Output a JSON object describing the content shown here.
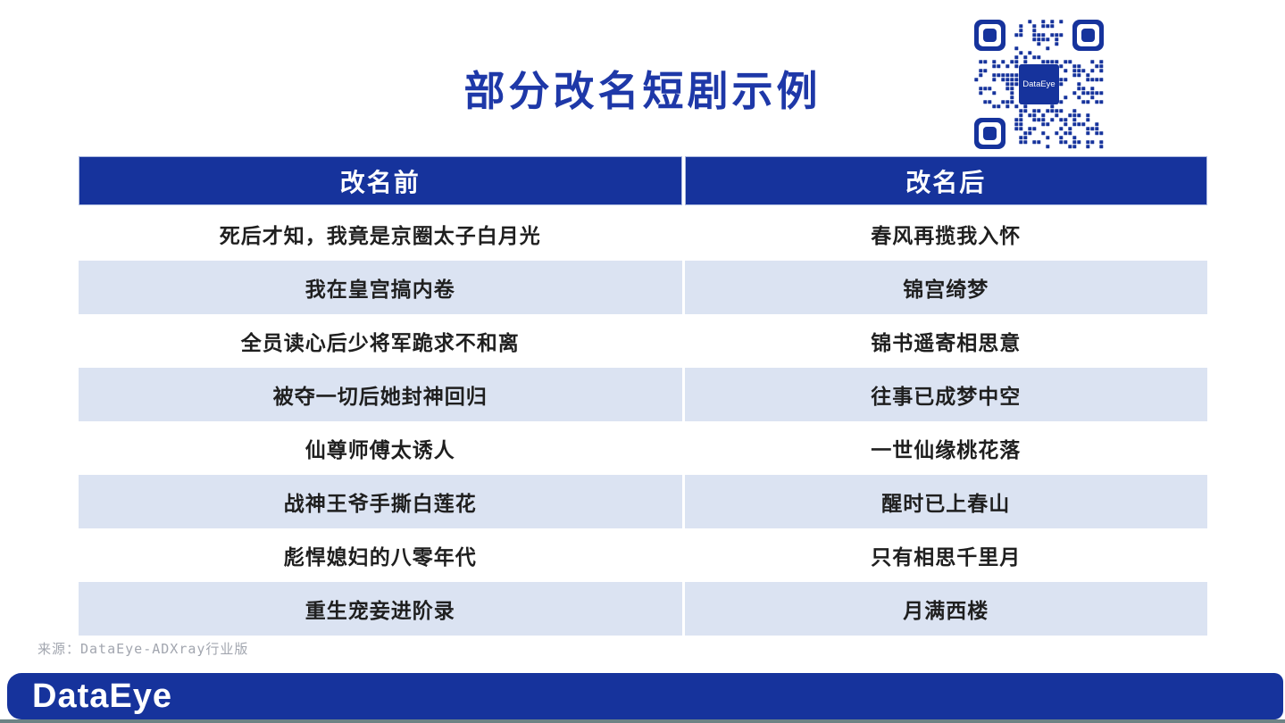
{
  "slide": {
    "title": "部分改名短剧示例",
    "source_note": "来源：DataEye-ADXray行业版",
    "footer_logo": "DataEye",
    "qr_center_label": "DataEye"
  },
  "table": {
    "headers": [
      "改名前",
      "改名后"
    ],
    "rows": [
      [
        "死后才知，我竟是京圈太子白月光",
        "春风再揽我入怀"
      ],
      [
        "我在皇宫搞内卷",
        "锦宫绮梦"
      ],
      [
        "全员读心后少将军跪求不和离",
        "锦书遥寄相思意"
      ],
      [
        "被夺一切后她封神回归",
        "往事已成梦中空"
      ],
      [
        "仙尊师傅太诱人",
        "一世仙缘桃花落"
      ],
      [
        "战神王爷手撕白莲花",
        "醒时已上春山"
      ],
      [
        "彪悍媳妇的八零年代",
        "只有相思千里月"
      ],
      [
        "重生宠妾进阶录",
        "月满西楼"
      ]
    ]
  },
  "colors": {
    "primary_blue": "#16339c",
    "title_blue": "#1e38a8",
    "row_alt_blue": "#dbe3f2",
    "text_dark": "#1f1f1f",
    "source_gray": "#a2a6af"
  }
}
